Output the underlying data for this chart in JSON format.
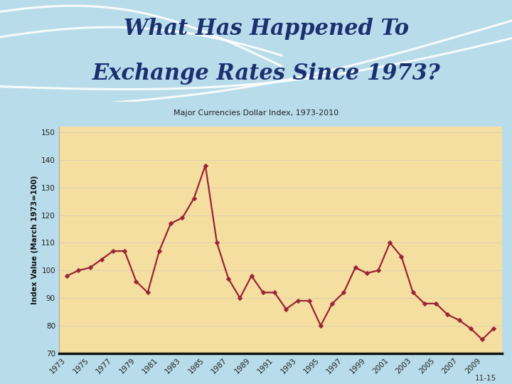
{
  "title_line1": "What Has Happened To",
  "title_line2": "Exchange Rates Since 1973?",
  "subtitle": "Major Currencies Dollar Index, 1973-2010",
  "ylabel": "Index Value (March 1973=100)",
  "title_bg_color": "#aed4e8",
  "chart_bg_color": "#f5dfa0",
  "outer_bg_color": "#b8dcea",
  "title_color": "#1a3070",
  "line_color": "#9b2335",
  "marker_color": "#9b2335",
  "grid_color": "#ddd0b0",
  "footnote": "11-15",
  "years": [
    1973,
    1974,
    1975,
    1976,
    1977,
    1978,
    1979,
    1980,
    1981,
    1982,
    1983,
    1984,
    1985,
    1986,
    1987,
    1988,
    1989,
    1990,
    1991,
    1992,
    1993,
    1994,
    1995,
    1996,
    1997,
    1998,
    1999,
    2000,
    2001,
    2002,
    2003,
    2004,
    2005,
    2006,
    2007,
    2008,
    2009,
    2010
  ],
  "values": [
    98,
    100,
    101,
    104,
    107,
    107,
    96,
    92,
    107,
    117,
    119,
    126,
    138,
    110,
    97,
    90,
    98,
    92,
    92,
    86,
    89,
    89,
    80,
    88,
    92,
    101,
    99,
    100,
    110,
    105,
    92,
    88,
    88,
    84,
    82,
    79,
    75,
    79
  ],
  "ylim": [
    70,
    152
  ],
  "yticks": [
    70,
    80,
    90,
    100,
    110,
    120,
    130,
    140,
    150
  ],
  "xtick_years": [
    1973,
    1975,
    1977,
    1979,
    1981,
    1983,
    1985,
    1987,
    1989,
    1991,
    1993,
    1995,
    1997,
    1999,
    2001,
    2003,
    2005,
    2007,
    2009
  ],
  "title_fontsize": 22,
  "subtitle_fontsize": 8
}
